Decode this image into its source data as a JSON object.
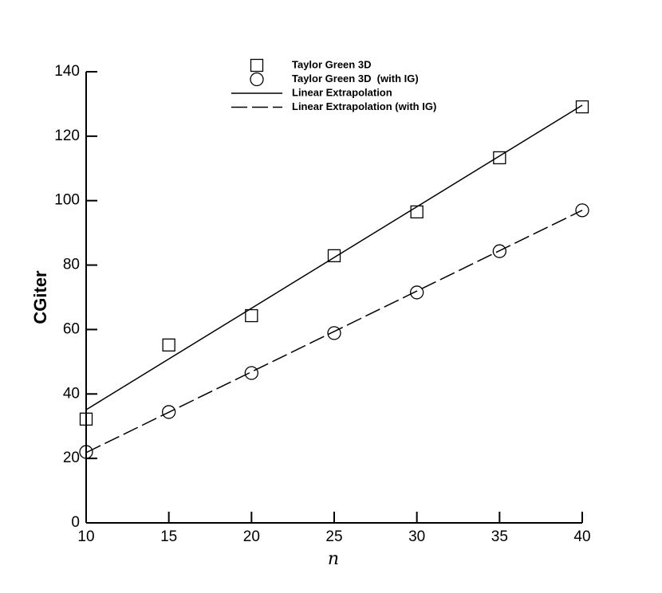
{
  "chart_data": {
    "type": "line",
    "x_label": "n",
    "y_label": "CGiter",
    "xlim": [
      10,
      40
    ],
    "xticks": [
      10,
      15,
      20,
      25,
      30,
      35,
      40
    ],
    "ylim": [
      0,
      140
    ],
    "yticks": [
      0,
      20,
      40,
      60,
      80,
      100,
      120,
      140
    ],
    "legend": "top",
    "series": [
      {
        "name": "Taylor Green 3D",
        "color": "#000000",
        "marker": "square",
        "line": "none",
        "x": [
          10,
          15,
          20,
          25,
          30,
          35,
          40
        ],
        "values": [
          32.2,
          55.2,
          64.3,
          82.9,
          96.5,
          113.3,
          129.1
        ]
      },
      {
        "name": "Taylor Green 3D  (with IG)",
        "color": "#000000",
        "marker": "circle",
        "line": "none",
        "x": [
          10,
          15,
          20,
          25,
          30,
          35,
          40
        ],
        "values": [
          22.0,
          34.4,
          46.5,
          58.9,
          71.5,
          84.3,
          97.0
        ]
      },
      {
        "name": "Linear Extrapolation",
        "color": "#000000",
        "marker": "none",
        "line": "solid",
        "x": [
          10,
          40
        ],
        "values": [
          35.1,
          129.6
        ]
      },
      {
        "name": "Linear Extrapolation (with IG)",
        "color": "#000000",
        "marker": "none",
        "line": "dashed",
        "x": [
          10,
          40
        ],
        "values": [
          21.8,
          97.0
        ]
      }
    ]
  }
}
